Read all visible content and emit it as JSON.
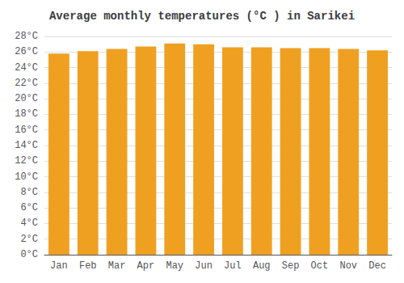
{
  "chart_data": {
    "type": "bar",
    "title": "Average monthly temperatures (°C ) in Sarikei",
    "categories": [
      "Jan",
      "Feb",
      "Mar",
      "Apr",
      "May",
      "Jun",
      "Jul",
      "Aug",
      "Sep",
      "Oct",
      "Nov",
      "Dec"
    ],
    "values": [
      25.8,
      26.1,
      26.4,
      26.7,
      27.1,
      27.0,
      26.6,
      26.6,
      26.5,
      26.5,
      26.4,
      26.2
    ],
    "color": "#F0A020",
    "ylim": [
      0,
      28
    ],
    "yticks": [
      {
        "value": 0,
        "label": "0°C"
      },
      {
        "value": 2,
        "label": "2°C"
      },
      {
        "value": 4,
        "label": "4°C"
      },
      {
        "value": 6,
        "label": "6°C"
      },
      {
        "value": 8,
        "label": "8°C"
      },
      {
        "value": 10,
        "label": "10°C"
      },
      {
        "value": 12,
        "label": "12°C"
      },
      {
        "value": 14,
        "label": "14°C"
      },
      {
        "value": 16,
        "label": "16°C"
      },
      {
        "value": 18,
        "label": "18°C"
      },
      {
        "value": 20,
        "label": "20°C"
      },
      {
        "value": 22,
        "label": "22°C"
      },
      {
        "value": 24,
        "label": "24°C"
      },
      {
        "value": 26,
        "label": "26°C"
      },
      {
        "value": 28,
        "label": "28°C"
      }
    ],
    "grid": true
  }
}
